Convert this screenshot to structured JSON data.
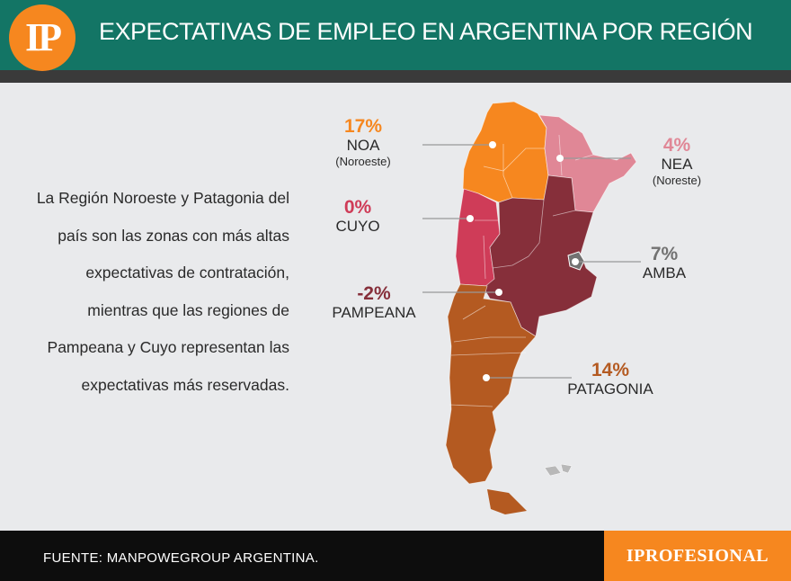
{
  "header": {
    "logo_text": "IP",
    "title": "EXPECTATIVAS DE EMPLEO EN ARGENTINA POR REGIÓN"
  },
  "description": "La Región Noroeste y Patagonia del país son las zonas con más altas expectativas de contratación, mientras que las regiones de Pampeana y Cuyo representan las expectativas más reservadas.",
  "regions": {
    "noa": {
      "pct": "17%",
      "name": "NOA",
      "sub": "(Noroeste)",
      "color": "#f6871f"
    },
    "nea": {
      "pct": "4%",
      "name": "NEA",
      "sub": "(Noreste)",
      "color": "#e08796"
    },
    "cuyo": {
      "pct": "0%",
      "name": "CUYO",
      "color": "#cf3c58"
    },
    "amba": {
      "pct": "7%",
      "name": "AMBA",
      "color": "#727272"
    },
    "pampeana": {
      "pct": "-2%",
      "name": "PAMPEANA",
      "color": "#862f3a"
    },
    "patagonia": {
      "pct": "14%",
      "name": "PATAGONIA",
      "color": "#b45a21"
    }
  },
  "footer": {
    "source": "FUENTE: MANPOWEGROUP ARGENTINA.",
    "brand": "IPROFESIONAL"
  }
}
